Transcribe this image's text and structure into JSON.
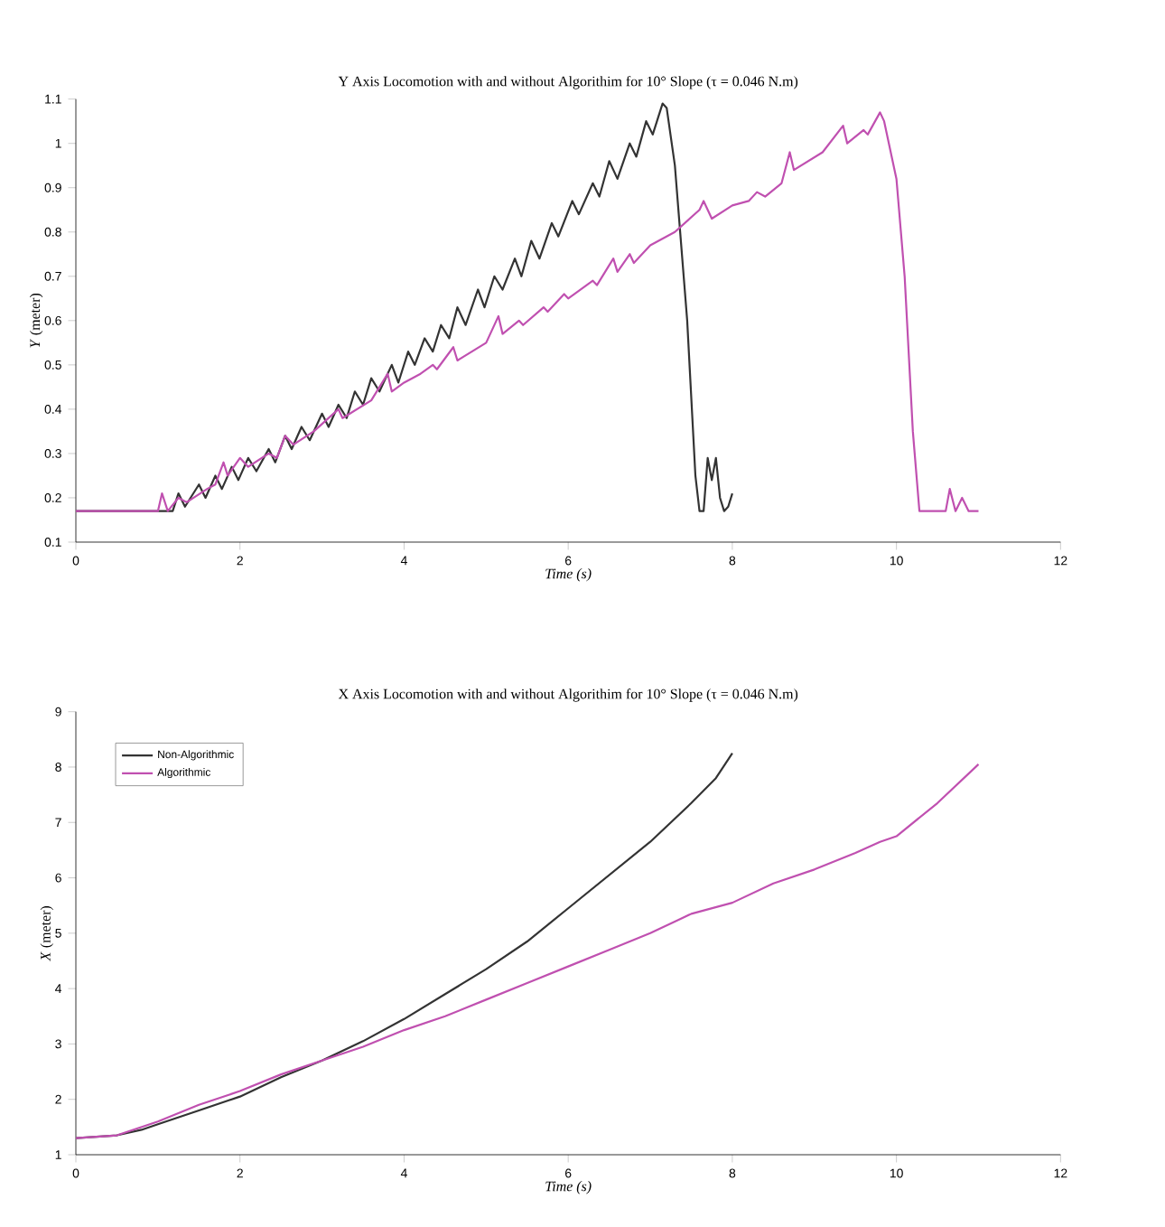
{
  "chart_data": [
    {
      "type": "line",
      "title": "Y Axis Locomotion with and without Algorithim for 10° Slope (τ = 0.046 N.m)",
      "xlabel": "Time (s)",
      "ylabel": "*Y* (meter)",
      "xlim": [
        0,
        12
      ],
      "ylim": [
        0.1,
        1.1
      ],
      "xticks": [
        0,
        2,
        4,
        6,
        8,
        10,
        12
      ],
      "yticks": [
        0.1,
        0.2,
        0.3,
        0.4,
        0.5,
        0.6,
        0.7,
        0.8,
        0.9,
        1,
        1.1
      ],
      "legend": false,
      "series": [
        {
          "color": "#333333",
          "x": [
            0,
            1.0,
            1.1,
            1.18,
            1.25,
            1.33,
            1.5,
            1.58,
            1.7,
            1.78,
            1.9,
            1.98,
            2.1,
            2.2,
            2.35,
            2.43,
            2.55,
            2.63,
            2.75,
            2.85,
            3.0,
            3.08,
            3.2,
            3.3,
            3.4,
            3.5,
            3.6,
            3.7,
            3.85,
            3.93,
            4.05,
            4.13,
            4.25,
            4.35,
            4.45,
            4.55,
            4.65,
            4.75,
            4.9,
            4.98,
            5.1,
            5.2,
            5.35,
            5.43,
            5.55,
            5.65,
            5.8,
            5.88,
            6.05,
            6.13,
            6.3,
            6.38,
            6.5,
            6.6,
            6.75,
            6.83,
            6.95,
            7.03,
            7.15,
            7.2,
            7.3,
            7.45,
            7.55,
            7.6,
            7.65,
            7.7,
            7.75,
            7.8,
            7.85,
            7.9,
            7.95,
            8.0
          ],
          "values": [
            0.17,
            0.17,
            0.17,
            0.17,
            0.21,
            0.18,
            0.23,
            0.2,
            0.25,
            0.22,
            0.27,
            0.24,
            0.29,
            0.26,
            0.31,
            0.28,
            0.34,
            0.31,
            0.36,
            0.33,
            0.39,
            0.36,
            0.41,
            0.38,
            0.44,
            0.41,
            0.47,
            0.44,
            0.5,
            0.46,
            0.53,
            0.5,
            0.56,
            0.53,
            0.59,
            0.56,
            0.63,
            0.59,
            0.67,
            0.63,
            0.7,
            0.67,
            0.74,
            0.7,
            0.78,
            0.74,
            0.82,
            0.79,
            0.87,
            0.84,
            0.91,
            0.88,
            0.96,
            0.92,
            1.0,
            0.97,
            1.05,
            1.02,
            1.09,
            1.08,
            0.95,
            0.6,
            0.25,
            0.17,
            0.17,
            0.29,
            0.24,
            0.29,
            0.2,
            0.17,
            0.18,
            0.21
          ]
        },
        {
          "color": "#c050b0",
          "x": [
            0,
            1.0,
            1.05,
            1.12,
            1.25,
            1.35,
            1.6,
            1.7,
            1.8,
            1.85,
            2.0,
            2.1,
            2.35,
            2.45,
            2.55,
            2.65,
            2.9,
            3.2,
            3.25,
            3.6,
            3.8,
            3.85,
            4.0,
            4.2,
            4.35,
            4.4,
            4.6,
            4.65,
            5.0,
            5.15,
            5.2,
            5.4,
            5.45,
            5.7,
            5.75,
            5.95,
            6.0,
            6.3,
            6.35,
            6.55,
            6.6,
            6.75,
            6.8,
            7.0,
            7.3,
            7.6,
            7.65,
            7.75,
            8.0,
            8.2,
            8.3,
            8.4,
            8.6,
            8.7,
            8.75,
            9.1,
            9.35,
            9.4,
            9.6,
            9.65,
            9.8,
            9.85,
            10.0,
            10.1,
            10.2,
            10.28,
            10.6,
            10.65,
            10.72,
            10.8,
            10.88,
            11.0
          ],
          "values": [
            0.17,
            0.17,
            0.21,
            0.17,
            0.2,
            0.19,
            0.22,
            0.23,
            0.28,
            0.25,
            0.29,
            0.27,
            0.3,
            0.29,
            0.34,
            0.32,
            0.35,
            0.4,
            0.38,
            0.42,
            0.48,
            0.44,
            0.46,
            0.48,
            0.5,
            0.49,
            0.54,
            0.51,
            0.55,
            0.61,
            0.57,
            0.6,
            0.59,
            0.63,
            0.62,
            0.66,
            0.65,
            0.69,
            0.68,
            0.74,
            0.71,
            0.75,
            0.73,
            0.77,
            0.8,
            0.85,
            0.87,
            0.83,
            0.86,
            0.87,
            0.89,
            0.88,
            0.91,
            0.98,
            0.94,
            0.98,
            1.04,
            1.0,
            1.03,
            1.02,
            1.07,
            1.05,
            0.92,
            0.7,
            0.35,
            0.17,
            0.17,
            0.22,
            0.17,
            0.2,
            0.17,
            0.17
          ]
        }
      ]
    },
    {
      "type": "line",
      "title": "X Axis Locomotion with and without Algorithim for 10° Slope (τ = 0.046 N.m)",
      "xlabel": "Time (s)",
      "ylabel": "*X* (meter)",
      "xlim": [
        0,
        12
      ],
      "ylim": [
        1,
        9
      ],
      "xticks": [
        0,
        2,
        4,
        6,
        8,
        10,
        12
      ],
      "yticks": [
        1,
        2,
        3,
        4,
        5,
        6,
        7,
        8,
        9
      ],
      "legend": "top left",
      "series": [
        {
          "name": "Non-Algorithmic",
          "color": "#333333",
          "x": [
            0,
            0.5,
            0.8,
            1.0,
            1.5,
            2.0,
            2.5,
            3.0,
            3.5,
            4.0,
            4.5,
            5.0,
            5.5,
            6.0,
            6.5,
            7.0,
            7.5,
            7.8,
            8.0
          ],
          "values": [
            1.3,
            1.35,
            1.45,
            1.55,
            1.8,
            2.05,
            2.4,
            2.7,
            3.05,
            3.45,
            3.9,
            4.35,
            4.85,
            5.45,
            6.05,
            6.65,
            7.35,
            7.8,
            8.25
          ]
        },
        {
          "name": "Algorithmic",
          "color": "#c050b0",
          "x": [
            0,
            0.5,
            1.0,
            1.5,
            2.0,
            2.5,
            3.0,
            3.5,
            4.0,
            4.5,
            5.0,
            5.5,
            6.0,
            6.5,
            7.0,
            7.5,
            8.0,
            8.5,
            9.0,
            9.5,
            9.8,
            10.0,
            10.5,
            11.0
          ],
          "values": [
            1.3,
            1.35,
            1.6,
            1.9,
            2.15,
            2.45,
            2.7,
            2.95,
            3.25,
            3.5,
            3.8,
            4.1,
            4.4,
            4.7,
            5.0,
            5.35,
            5.55,
            5.9,
            6.15,
            6.45,
            6.65,
            6.75,
            7.35,
            8.05
          ]
        }
      ]
    }
  ]
}
